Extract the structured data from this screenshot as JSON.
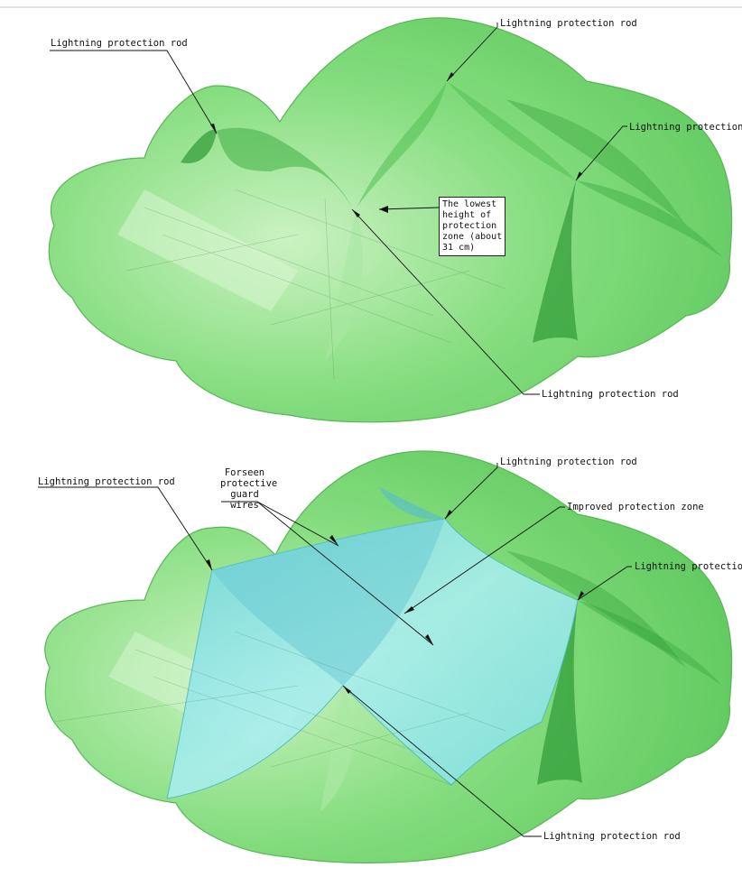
{
  "top_diagram": {
    "rod_label_left": "Lightning protection rod",
    "rod_label_top": "Lightning protection rod",
    "rod_label_right": "Lightning protection rod",
    "rod_label_bottom": "Lightning protection rod",
    "lowest_height_note": [
      "The lowest",
      "height of",
      "protection",
      "zone (about",
      "31 cm)"
    ]
  },
  "bottom_diagram": {
    "rod_label_left": "Lightning protection rod",
    "guard_wires_label": [
      "Forseen",
      "protective",
      "guard wires"
    ],
    "rod_label_top": "Lightning protection rod",
    "improved_zone_label": "Improved protection zone",
    "rod_label_right": "Lightning protection ro",
    "rod_label_bottom": "Lightning protection rod"
  },
  "colors": {
    "zone_green": "#6fd36a",
    "zone_green_dark": "#3fae43",
    "improved_zone_cyan": "#8fe6ea",
    "leader_line": "#111111"
  }
}
